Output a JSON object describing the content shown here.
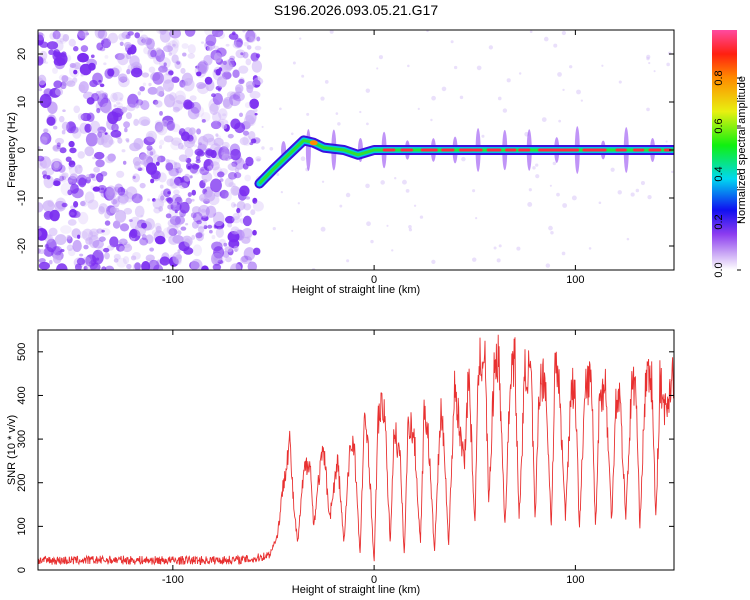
{
  "title": "S196.2026.093.05.21.G17",
  "chart_data": [
    {
      "type": "heatmap",
      "xlabel": "Height of straight line (km)",
      "ylabel": "Frequency (Hz)",
      "xlim": [
        -167,
        149
      ],
      "ylim": [
        -25,
        25
      ],
      "xticks": [
        -100,
        0,
        100
      ],
      "xtick_labels": [
        "-100",
        "0",
        "100"
      ],
      "yticks": [
        -20,
        -10,
        0,
        10,
        20
      ],
      "ytick_labels": [
        "-20",
        "-10",
        "0",
        "10",
        "20"
      ],
      "colorbar": {
        "label": "Normalized spectral amplitude",
        "range": [
          0,
          1
        ],
        "ticks": [
          0,
          0.2,
          0.4,
          0.6,
          0.8
        ],
        "tick_labels": [
          "0.0",
          "0.2",
          "0.4",
          "0.6",
          "0.8"
        ]
      },
      "features": {
        "noise_region_x": [
          -167,
          -57
        ],
        "ridge_x": [
          -57,
          149
        ],
        "ridge_frequency": 0
      }
    },
    {
      "type": "line",
      "xlabel": "Height of straight line (km)",
      "ylabel": "SNR (10 * v/v)",
      "xlim": [
        -167,
        149
      ],
      "ylim": [
        0,
        550
      ],
      "xticks": [
        -100,
        0,
        100
      ],
      "xtick_labels": [
        "-100",
        "0",
        "100"
      ],
      "yticks": [
        0,
        100,
        200,
        300,
        400,
        500
      ],
      "ytick_labels": [
        "0",
        "100",
        "200",
        "300",
        "400",
        "500"
      ],
      "series": [
        {
          "name": "SNR",
          "color": "#e83030",
          "x": [
            -167,
            -150,
            -130,
            -110,
            -90,
            -70,
            -60,
            -52,
            -48,
            -45,
            -42,
            -40,
            -38,
            -35,
            -32,
            -30,
            -27,
            -25,
            -22,
            -20,
            -18,
            -15,
            -12,
            -10,
            -7,
            -5,
            -3,
            0,
            2,
            5,
            8,
            10,
            13,
            15,
            17,
            20,
            23,
            25,
            27,
            30,
            33,
            35,
            37,
            40,
            43,
            45,
            47,
            50,
            52,
            55,
            57,
            60,
            62,
            65,
            68,
            70,
            72,
            75,
            78,
            80,
            82,
            85,
            88,
            90,
            92,
            95,
            98,
            100,
            102,
            105,
            108,
            110,
            112,
            115,
            118,
            120,
            122,
            125,
            128,
            130,
            132,
            135,
            138,
            140,
            142,
            145,
            148,
            149
          ],
          "values": [
            22,
            22,
            23,
            22,
            22,
            23,
            25,
            35,
            80,
            200,
            300,
            150,
            60,
            220,
            260,
            100,
            230,
            270,
            120,
            190,
            250,
            60,
            280,
            300,
            30,
            330,
            300,
            10,
            350,
            380,
            60,
            330,
            250,
            30,
            350,
            300,
            60,
            380,
            300,
            40,
            360,
            280,
            50,
            430,
            300,
            260,
            460,
            100,
            470,
            500,
            150,
            490,
            480,
            100,
            470,
            480,
            110,
            460,
            450,
            100,
            420,
            450,
            100,
            480,
            420,
            120,
            430,
            400,
            100,
            420,
            440,
            90,
            400,
            420,
            110,
            380,
            410,
            120,
            420,
            430,
            100,
            440,
            430,
            110,
            430,
            360,
            450,
            440
          ]
        }
      ]
    }
  ]
}
